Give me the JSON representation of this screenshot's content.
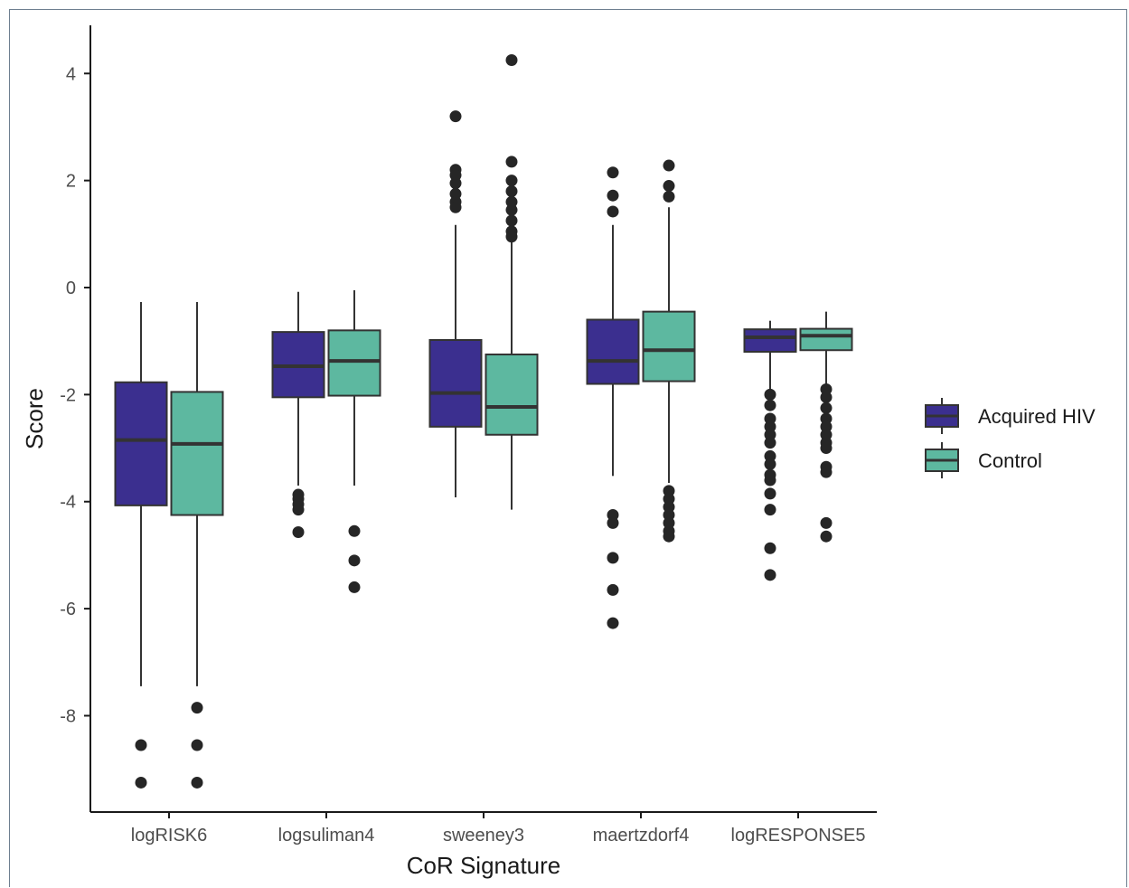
{
  "chart_data": {
    "type": "boxplot",
    "xlabel": "CoR Signature",
    "ylabel": "Score",
    "ylim": [
      -9.8,
      4.9
    ],
    "yticks": [
      4,
      2,
      0,
      -2,
      -4,
      -6,
      -8
    ],
    "categories": [
      "logRISK6",
      "logsuliman4",
      "sweeney3",
      "maertzdorf4",
      "logRESPONSE5"
    ],
    "legend_position": "right",
    "grid": false,
    "series": [
      {
        "name": "Acquired HIV",
        "color": "#3b2f8f",
        "boxes": [
          {
            "whisker_low": -7.45,
            "q1": -4.07,
            "median": -2.85,
            "q3": -1.77,
            "whisker_high": -0.27,
            "outliers": [
              -8.55,
              -9.25
            ]
          },
          {
            "whisker_low": -3.7,
            "q1": -2.05,
            "median": -1.47,
            "q3": -0.83,
            "whisker_high": -0.08,
            "outliers": [
              -3.87,
              -3.95,
              -4.05,
              -4.15,
              -4.57
            ]
          },
          {
            "whisker_low": -3.92,
            "q1": -2.6,
            "median": -1.97,
            "q3": -0.98,
            "whisker_high": 1.17,
            "outliers": [
              3.2,
              2.2,
              2.1,
              1.95,
              1.75,
              1.6,
              1.5
            ]
          },
          {
            "whisker_low": -3.52,
            "q1": -1.8,
            "median": -1.37,
            "q3": -0.6,
            "whisker_high": 1.17,
            "outliers": [
              2.15,
              1.72,
              1.42,
              -4.25,
              -4.4,
              -5.05,
              -5.65,
              -6.27
            ]
          },
          {
            "whisker_low": -1.97,
            "q1": -1.2,
            "median": -0.93,
            "q3": -0.78,
            "whisker_high": -0.62,
            "outliers": [
              -2.0,
              -2.2,
              -2.45,
              -2.6,
              -2.75,
              -2.9,
              -3.15,
              -3.3,
              -3.5,
              -3.6,
              -3.85,
              -4.15,
              -4.87,
              -5.37
            ]
          }
        ]
      },
      {
        "name": "Control",
        "color": "#5db8a0",
        "boxes": [
          {
            "whisker_low": -7.45,
            "q1": -4.25,
            "median": -2.92,
            "q3": -1.95,
            "whisker_high": -0.27,
            "outliers": [
              -7.85,
              -8.55,
              -9.25
            ]
          },
          {
            "whisker_low": -3.7,
            "q1": -2.02,
            "median": -1.37,
            "q3": -0.8,
            "whisker_high": -0.05,
            "outliers": [
              -4.55,
              -5.1,
              -5.6
            ]
          },
          {
            "whisker_low": -4.15,
            "q1": -2.75,
            "median": -2.23,
            "q3": -1.25,
            "whisker_high": 0.88,
            "outliers": [
              4.25,
              2.35,
              2.0,
              1.8,
              1.6,
              1.45,
              1.25,
              1.05,
              0.95
            ]
          },
          {
            "whisker_low": -3.65,
            "q1": -1.75,
            "median": -1.17,
            "q3": -0.45,
            "whisker_high": 1.5,
            "outliers": [
              2.28,
              1.9,
              1.7,
              -3.8,
              -3.95,
              -4.1,
              -4.25,
              -4.4,
              -4.55,
              -4.65
            ]
          },
          {
            "whisker_low": -1.85,
            "q1": -1.17,
            "median": -0.9,
            "q3": -0.77,
            "whisker_high": -0.45,
            "outliers": [
              -1.9,
              -2.05,
              -2.25,
              -2.45,
              -2.6,
              -2.75,
              -2.9,
              -3.0,
              -3.35,
              -3.45,
              -4.4,
              -4.65
            ]
          }
        ]
      }
    ]
  }
}
